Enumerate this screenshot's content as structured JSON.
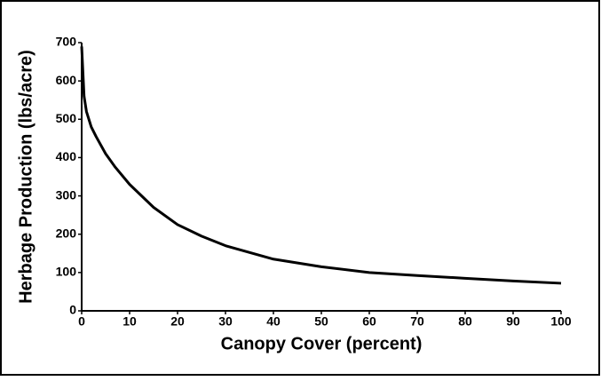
{
  "chart_data": {
    "type": "line",
    "xlabel": "Canopy Cover (percent)",
    "ylabel": "Herbage Production (lbs/acre)",
    "x": [
      0,
      0.5,
      1,
      2,
      3,
      5,
      7,
      10,
      15,
      20,
      25,
      30,
      40,
      50,
      60,
      70,
      80,
      90,
      100
    ],
    "series": [
      {
        "name": null,
        "color": "#000000",
        "values": [
          690,
          560,
          520,
          480,
          455,
          410,
          375,
          330,
          270,
          225,
          195,
          170,
          135,
          115,
          100,
          92,
          85,
          78,
          72
        ]
      }
    ],
    "xlim": [
      0,
      100
    ],
    "xticks": [
      0,
      10,
      20,
      30,
      40,
      50,
      60,
      70,
      80,
      90,
      100
    ],
    "ylim": [
      0,
      700
    ],
    "yticks": [
      0,
      100,
      200,
      300,
      400,
      500,
      600,
      700
    ],
    "grid": false
  }
}
